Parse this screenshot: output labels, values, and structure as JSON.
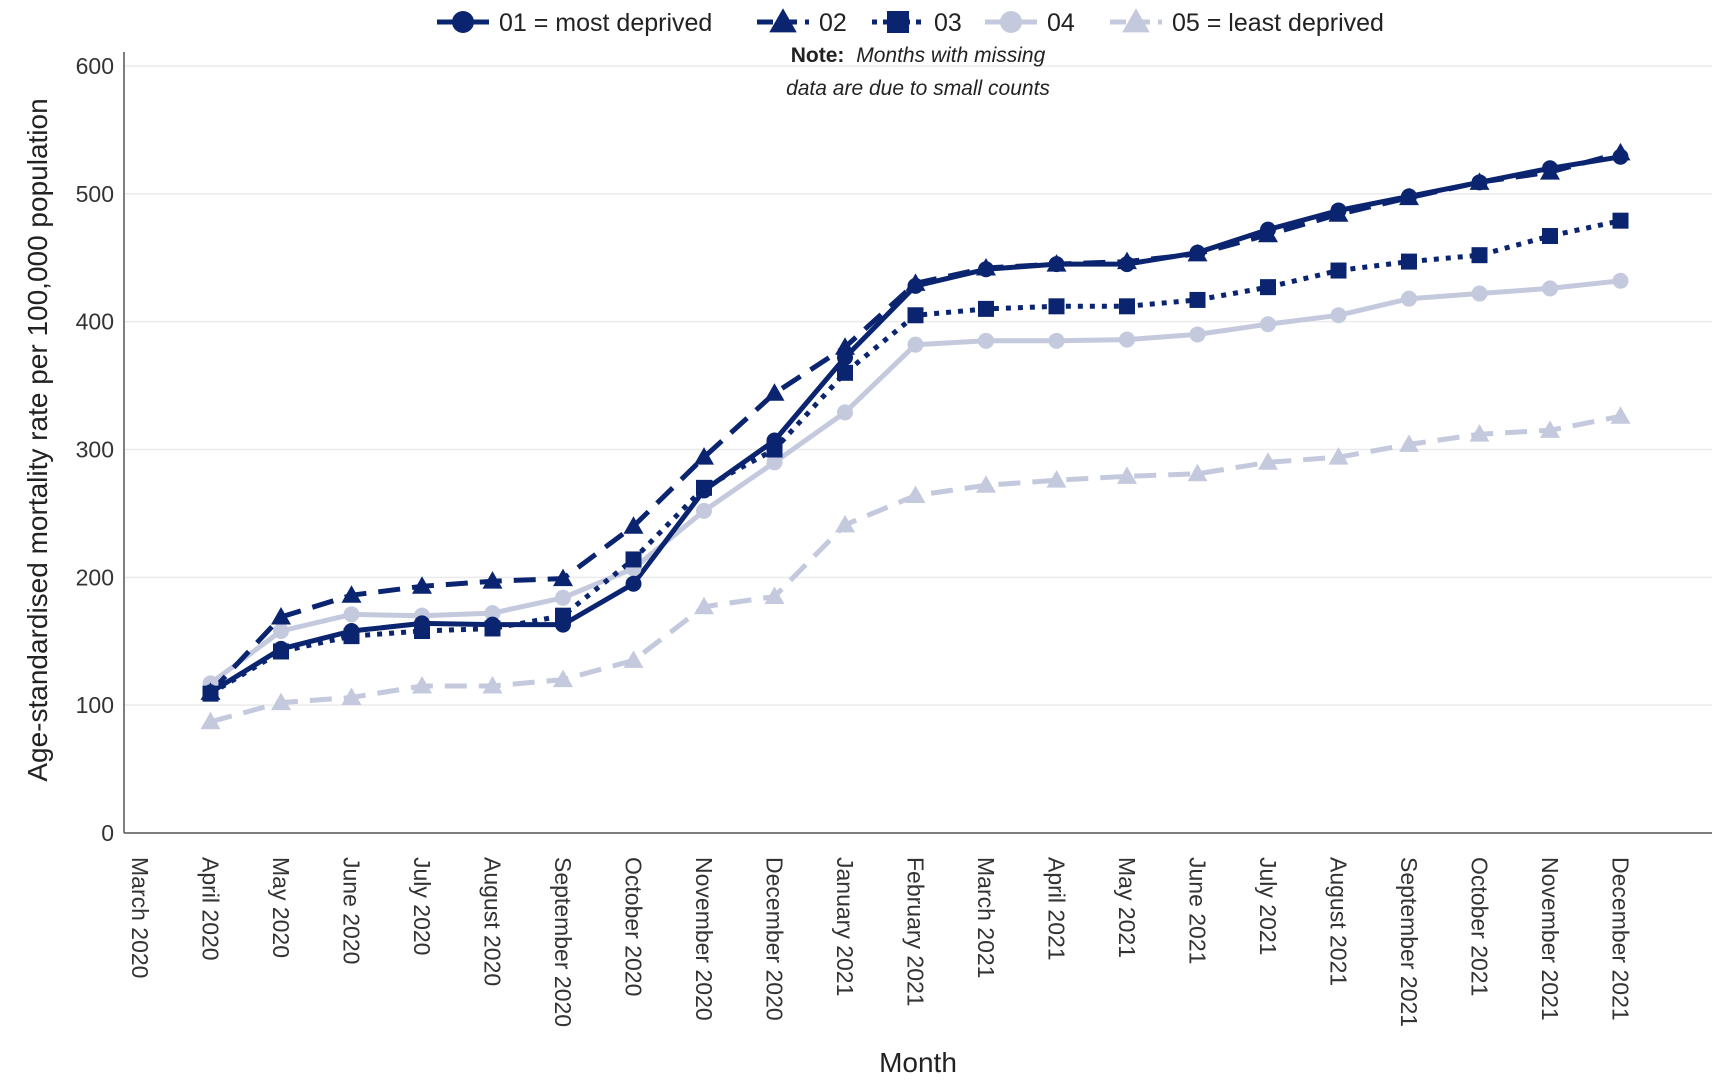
{
  "chart_data": {
    "type": "line",
    "title": "",
    "xlabel": "Month",
    "ylabel": "Age-standardised mortality rate per 100,000 population",
    "ylim": [
      0,
      600
    ],
    "yticks": [
      0,
      100,
      200,
      300,
      400,
      500,
      600
    ],
    "grid": true,
    "legend_position": "top",
    "note": {
      "bold": "Note:",
      "line1": "Months with missing",
      "line2": "data are due to small counts"
    },
    "categories": [
      "March 2020",
      "April 2020",
      "May 2020",
      "June 2020",
      "July 2020",
      "August 2020",
      "September 2020",
      "October 2020",
      "November 2020",
      "December 2020",
      "January 2021",
      "February 2021",
      "March 2021",
      "April 2021",
      "May 2021",
      "June 2021",
      "July 2021",
      "August 2021",
      "September 2021",
      "October 2021",
      "November 2021",
      "December 2021"
    ],
    "series": [
      {
        "name": "01 = most deprived",
        "color": "#0b2470",
        "dash": "solid",
        "marker": "circle",
        "values": [
          null,
          110,
          144,
          158,
          164,
          163,
          163,
          195,
          268,
          307,
          372,
          428,
          441,
          445,
          445,
          454,
          472,
          487,
          498,
          509,
          520,
          529
        ]
      },
      {
        "name": "02",
        "color": "#0b2470",
        "dash": "dash",
        "marker": "triangle",
        "values": [
          null,
          110,
          169,
          186,
          193,
          197,
          199,
          240,
          294,
          344,
          380,
          430,
          442,
          445,
          447,
          453,
          468,
          484,
          497,
          509,
          517,
          532
        ]
      },
      {
        "name": "03",
        "color": "#0b2470",
        "dash": "dot",
        "marker": "square",
        "values": [
          null,
          109,
          142,
          154,
          158,
          160,
          170,
          214,
          270,
          300,
          360,
          405,
          410,
          412,
          412,
          417,
          427,
          440,
          447,
          452,
          467,
          479
        ]
      },
      {
        "name": "04",
        "color": "#c4c9dd",
        "dash": "solid",
        "marker": "circle",
        "values": [
          null,
          117,
          158,
          171,
          170,
          172,
          184,
          207,
          252,
          290,
          329,
          382,
          385,
          385,
          386,
          390,
          398,
          405,
          418,
          422,
          426,
          432
        ]
      },
      {
        "name": "05 = least deprived",
        "color": "#c4c9dd",
        "dash": "dash",
        "marker": "triangle",
        "values": [
          null,
          87,
          102,
          106,
          115,
          115,
          120,
          135,
          177,
          185,
          241,
          264,
          272,
          276,
          279,
          281,
          290,
          294,
          304,
          312,
          315,
          326
        ]
      }
    ]
  }
}
